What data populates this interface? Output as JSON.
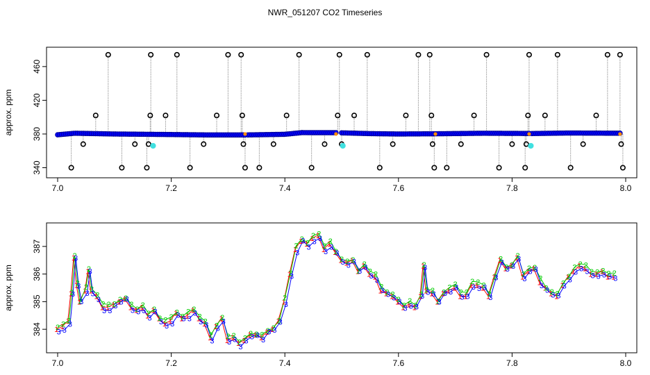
{
  "title": "NWR_051207  CO2 Timeseries",
  "colors": {
    "frame": "#000000",
    "grey": "#9a9a9a",
    "blue": "#0000ff",
    "cyan": "#40e0e0",
    "red": "#ff0000",
    "green": "#00cc00",
    "darkblue": "#00008b",
    "orange": "#ff8c00"
  },
  "chart_data": [
    {
      "type": "scatter",
      "name": "top-panel",
      "ylabel": "approx. ppm",
      "xlim": [
        7.0,
        8.0
      ],
      "ylim": [
        333,
        478
      ],
      "xticks": [
        7.0,
        7.2,
        7.4,
        7.6,
        7.8,
        8.0
      ],
      "yticks": [
        340,
        380,
        420,
        460
      ],
      "segments": [
        {
          "x": [
            7.0,
            7.33
          ],
          "base": 384.4,
          "drift": [
            [
              7.0,
              384.0
            ],
            [
              7.03,
              386.0
            ],
            [
              7.1,
              385.0
            ],
            [
              7.2,
              384.3
            ],
            [
              7.26,
              383.8
            ],
            [
              7.33,
              383.8
            ]
          ]
        },
        {
          "x": [
            7.335,
            7.49
          ],
          "base": 384.6,
          "drift": [
            [
              7.335,
              383.8
            ],
            [
              7.4,
              384.6
            ],
            [
              7.43,
              386.8
            ],
            [
              7.49,
              386.7
            ]
          ]
        },
        {
          "x": [
            7.5,
            7.665
          ],
          "base": 385.3,
          "drift": [
            [
              7.5,
              386.5
            ],
            [
              7.55,
              385.5
            ],
            [
              7.6,
              385.0
            ],
            [
              7.665,
              385.3
            ]
          ]
        },
        {
          "x": [
            7.668,
            7.83
          ],
          "base": 385.5,
          "drift": [
            [
              7.668,
              385.3
            ],
            [
              7.75,
              386.0
            ],
            [
              7.83,
              385.7
            ]
          ]
        },
        {
          "x": [
            7.835,
            7.99
          ],
          "base": 385.7,
          "drift": [
            [
              7.835,
              385.6
            ],
            [
              7.9,
              386.3
            ],
            [
              7.99,
              386.0
            ]
          ]
        }
      ],
      "outliers": [
        {
          "x": 7.024,
          "y": 340
        },
        {
          "x": 7.045,
          "y": 368
        },
        {
          "x": 7.067,
          "y": 402
        },
        {
          "x": 7.089,
          "y": 474
        },
        {
          "x": 7.113,
          "y": 340
        },
        {
          "x": 7.136,
          "y": 368
        },
        {
          "x": 7.157,
          "y": 340
        },
        {
          "x": 7.16,
          "y": 368
        },
        {
          "x": 7.163,
          "y": 402
        },
        {
          "x": 7.164,
          "y": 474
        },
        {
          "x": 7.19,
          "y": 402
        },
        {
          "x": 7.21,
          "y": 474
        },
        {
          "x": 7.233,
          "y": 340
        },
        {
          "x": 7.257,
          "y": 368
        },
        {
          "x": 7.28,
          "y": 402
        },
        {
          "x": 7.3,
          "y": 474
        },
        {
          "x": 7.323,
          "y": 474
        },
        {
          "x": 7.325,
          "y": 402
        },
        {
          "x": 7.327,
          "y": 368
        },
        {
          "x": 7.33,
          "y": 340
        },
        {
          "x": 7.355,
          "y": 340
        },
        {
          "x": 7.38,
          "y": 368
        },
        {
          "x": 7.403,
          "y": 402
        },
        {
          "x": 7.425,
          "y": 474
        },
        {
          "x": 7.447,
          "y": 340
        },
        {
          "x": 7.47,
          "y": 368
        },
        {
          "x": 7.493,
          "y": 402
        },
        {
          "x": 7.496,
          "y": 474
        },
        {
          "x": 7.5,
          "y": 368
        },
        {
          "x": 7.522,
          "y": 402
        },
        {
          "x": 7.545,
          "y": 474
        },
        {
          "x": 7.567,
          "y": 340
        },
        {
          "x": 7.59,
          "y": 368
        },
        {
          "x": 7.613,
          "y": 402
        },
        {
          "x": 7.635,
          "y": 474
        },
        {
          "x": 7.655,
          "y": 474
        },
        {
          "x": 7.658,
          "y": 402
        },
        {
          "x": 7.66,
          "y": 368
        },
        {
          "x": 7.663,
          "y": 340
        },
        {
          "x": 7.685,
          "y": 340
        },
        {
          "x": 7.71,
          "y": 368
        },
        {
          "x": 7.733,
          "y": 402
        },
        {
          "x": 7.755,
          "y": 474
        },
        {
          "x": 7.777,
          "y": 340
        },
        {
          "x": 7.8,
          "y": 368
        },
        {
          "x": 7.823,
          "y": 340
        },
        {
          "x": 7.825,
          "y": 368
        },
        {
          "x": 7.828,
          "y": 402
        },
        {
          "x": 7.83,
          "y": 474
        },
        {
          "x": 7.858,
          "y": 402
        },
        {
          "x": 7.88,
          "y": 474
        },
        {
          "x": 7.903,
          "y": 340
        },
        {
          "x": 7.925,
          "y": 368
        },
        {
          "x": 7.948,
          "y": 402
        },
        {
          "x": 7.968,
          "y": 474
        },
        {
          "x": 7.99,
          "y": 474
        },
        {
          "x": 7.992,
          "y": 368
        },
        {
          "x": 7.995,
          "y": 340
        }
      ],
      "cyan_points": [
        {
          "x": 7.168,
          "y": 366
        },
        {
          "x": 7.502,
          "y": 366
        },
        {
          "x": 7.833,
          "y": 366
        }
      ]
    },
    {
      "type": "line",
      "name": "bottom-panel",
      "ylabel": "approx. ppm",
      "xlim": [
        7.0,
        8.0
      ],
      "ylim": [
        383.3,
        387.7
      ],
      "xticks": [
        7.0,
        7.2,
        7.4,
        7.6,
        7.8,
        8.0
      ],
      "yticks": [
        384,
        385,
        386,
        387
      ],
      "series": [
        {
          "marker": "1",
          "x": [
            7.0,
            7.01,
            7.02,
            7.025,
            7.03,
            7.035,
            7.04,
            7.05,
            7.055,
            7.06,
            7.07,
            7.08,
            7.09,
            7.1,
            7.11,
            7.12,
            7.13,
            7.14,
            7.15,
            7.16,
            7.17,
            7.18,
            7.19,
            7.2,
            7.21,
            7.22,
            7.23,
            7.24,
            7.25,
            7.26,
            7.27,
            7.28,
            7.29,
            7.3,
            7.31,
            7.32,
            7.33,
            7.34,
            7.35,
            7.36,
            7.37,
            7.38,
            7.39,
            7.4,
            7.41,
            7.42,
            7.43,
            7.44,
            7.45,
            7.46,
            7.47,
            7.48,
            7.49,
            7.5,
            7.51,
            7.52,
            7.53,
            7.54,
            7.55,
            7.56,
            7.57,
            7.58,
            7.59,
            7.6,
            7.61,
            7.62,
            7.63,
            7.64,
            7.645,
            7.65,
            7.66,
            7.67,
            7.68,
            7.69,
            7.7,
            7.71,
            7.72,
            7.73,
            7.74,
            7.75,
            7.76,
            7.77,
            7.78,
            7.79,
            7.8,
            7.81,
            7.82,
            7.83,
            7.84,
            7.85,
            7.86,
            7.87,
            7.88,
            7.89,
            7.9,
            7.91,
            7.92,
            7.93,
            7.94,
            7.95,
            7.96,
            7.97,
            7.98
          ],
          "y": [
            384.0,
            384.1,
            384.3,
            385.3,
            386.6,
            385.6,
            385.0,
            385.4,
            386.1,
            385.4,
            385.2,
            384.8,
            384.8,
            384.9,
            385.0,
            385.1,
            384.8,
            384.7,
            384.8,
            384.5,
            384.7,
            384.4,
            384.2,
            384.3,
            384.6,
            384.4,
            384.5,
            384.7,
            384.4,
            384.2,
            383.7,
            384.1,
            384.4,
            383.6,
            383.7,
            383.5,
            383.6,
            383.8,
            383.8,
            383.7,
            383.9,
            384.0,
            384.3,
            385.0,
            386.0,
            386.9,
            387.2,
            387.1,
            387.3,
            387.4,
            386.9,
            387.1,
            386.8,
            386.5,
            386.4,
            386.5,
            386.1,
            386.3,
            386.0,
            385.9,
            385.4,
            385.3,
            385.2,
            385.0,
            384.8,
            384.9,
            384.8,
            385.2,
            386.3,
            385.4,
            385.3,
            385.0,
            385.3,
            385.4,
            385.5,
            385.2,
            385.2,
            385.6,
            385.6,
            385.5,
            385.2,
            385.9,
            386.5,
            386.2,
            386.3,
            386.6,
            385.9,
            386.1,
            386.2,
            385.7,
            385.5,
            385.3,
            385.2,
            385.6,
            385.9,
            386.1,
            386.3,
            386.2,
            386.0,
            386.0,
            386.1,
            385.9,
            385.9
          ]
        },
        {
          "marker": "2",
          "offset": 0.08
        },
        {
          "marker": "3",
          "offset": -0.05
        }
      ]
    }
  ]
}
